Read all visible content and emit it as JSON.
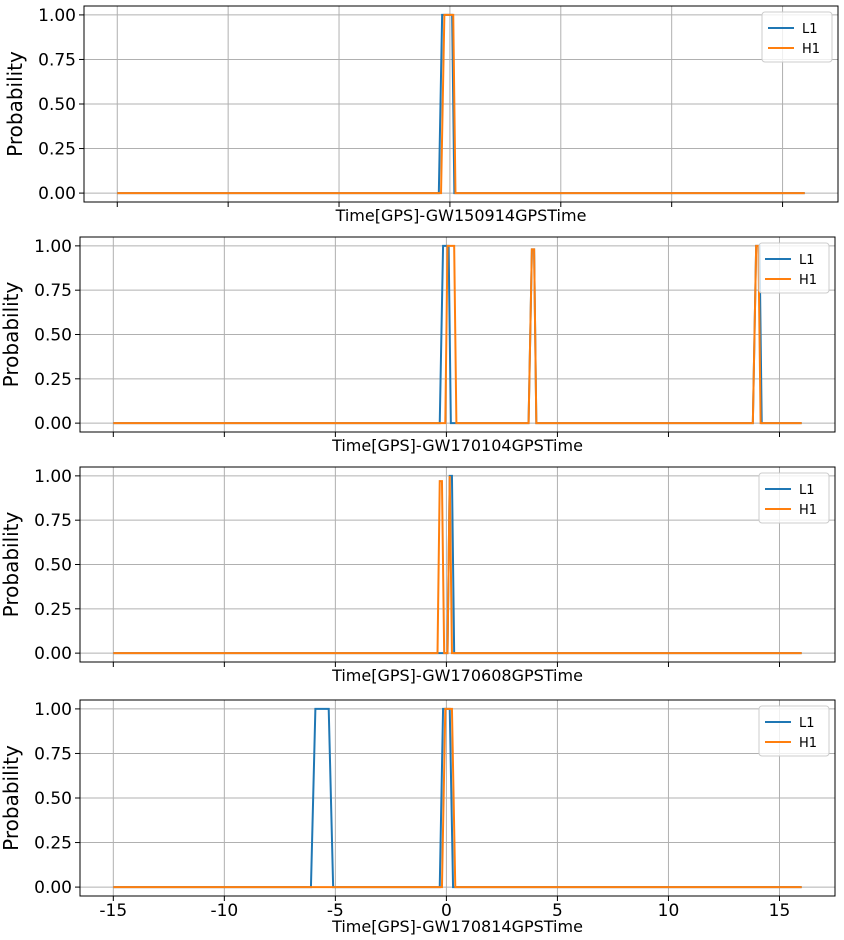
{
  "colors": {
    "L1": "#1f77b4",
    "H1": "#ff7f0e",
    "grid": "#b0b0b0",
    "axes": "#000000"
  },
  "chart_data": [
    {
      "type": "line",
      "xlabel": "Time[GPS]-GW150914GPSTime",
      "ylabel": "Probability",
      "xlim": [
        -16.5,
        17.5
      ],
      "ylim": [
        -0.05,
        1.05
      ],
      "xticks": [
        -15,
        -10,
        -5,
        0,
        5,
        10,
        15
      ],
      "xtick_labels": [
        "-15",
        "-10",
        "-5",
        "0",
        "5",
        "10",
        "15"
      ],
      "yticks": [
        0,
        0.25,
        0.5,
        0.75,
        1.0
      ],
      "ytick_labels": [
        "0.00",
        "0.25",
        "0.50",
        "0.75",
        "1.00"
      ],
      "show_xtick_labels": false,
      "grid": true,
      "legend": "top-right",
      "series": [
        {
          "name": "L1",
          "x": [
            -15,
            -0.5,
            -0.35,
            0.1,
            0.2,
            16
          ],
          "y": [
            0,
            0,
            1,
            1,
            0,
            0
          ]
        },
        {
          "name": "H1",
          "x": [
            -15,
            -0.4,
            -0.25,
            0.15,
            0.25,
            16
          ],
          "y": [
            0,
            0,
            1,
            1,
            0,
            0
          ]
        }
      ]
    },
    {
      "type": "line",
      "xlabel": "Time[GPS]-GW170104GPSTime",
      "ylabel": "Probability",
      "xlim": [
        -16.5,
        17.5
      ],
      "ylim": [
        -0.05,
        1.05
      ],
      "xticks": [
        -15,
        -10,
        -5,
        0,
        5,
        10,
        15
      ],
      "xtick_labels": [
        "-15",
        "-10",
        "-5",
        "0",
        "5",
        "10",
        "15"
      ],
      "yticks": [
        0,
        0.25,
        0.5,
        0.75,
        1.0
      ],
      "ytick_labels": [
        "0.00",
        "0.25",
        "0.50",
        "0.75",
        "1.00"
      ],
      "show_xtick_labels": false,
      "grid": true,
      "legend": "top-right",
      "series": [
        {
          "name": "L1",
          "x": [
            -15,
            -0.3,
            -0.15,
            0.1,
            0.2,
            3.7,
            3.85,
            3.95,
            4.05,
            13.8,
            13.95,
            14.1,
            14.2,
            16
          ],
          "y": [
            0,
            0,
            1,
            1,
            0,
            0,
            0.98,
            0.98,
            0,
            0,
            1,
            1,
            0,
            0
          ]
        },
        {
          "name": "H1",
          "x": [
            -15,
            -0.05,
            0.05,
            0.35,
            0.45,
            3.7,
            3.85,
            3.95,
            4.05,
            13.8,
            13.95,
            14.05,
            14.15,
            16
          ],
          "y": [
            0,
            0,
            1,
            1,
            0,
            0,
            0.98,
            0.98,
            0,
            0,
            1,
            1,
            0,
            0
          ]
        }
      ]
    },
    {
      "type": "line",
      "xlabel": "Time[GPS]-GW170608GPSTime",
      "ylabel": "Probability",
      "xlim": [
        -16.5,
        17.5
      ],
      "ylim": [
        -0.05,
        1.05
      ],
      "xticks": [
        -15,
        -10,
        -5,
        0,
        5,
        10,
        15
      ],
      "xtick_labels": [
        "-15",
        "-10",
        "-5",
        "0",
        "5",
        "10",
        "15"
      ],
      "yticks": [
        0,
        0.25,
        0.5,
        0.75,
        1.0
      ],
      "ytick_labels": [
        "0.00",
        "0.25",
        "0.50",
        "0.75",
        "1.00"
      ],
      "show_xtick_labels": false,
      "grid": true,
      "legend": "top-right",
      "series": [
        {
          "name": "L1",
          "x": [
            -15,
            0.05,
            0.15,
            0.25,
            0.35,
            16
          ],
          "y": [
            0,
            0,
            1,
            1,
            0,
            0
          ]
        },
        {
          "name": "H1",
          "x": [
            -15,
            -0.4,
            -0.3,
            -0.2,
            -0.1,
            0.05,
            0.15,
            0.25,
            16
          ],
          "y": [
            0,
            0,
            0.97,
            0.97,
            0,
            0,
            1,
            0,
            0
          ]
        }
      ]
    },
    {
      "type": "line",
      "xlabel": "Time[GPS]-GW170814GPSTime",
      "ylabel": "Probability",
      "xlim": [
        -16.5,
        17.5
      ],
      "ylim": [
        -0.05,
        1.05
      ],
      "xticks": [
        -15,
        -10,
        -5,
        0,
        5,
        10,
        15
      ],
      "xtick_labels": [
        "-15",
        "-10",
        "-5",
        "0",
        "5",
        "10",
        "15"
      ],
      "yticks": [
        0,
        0.25,
        0.5,
        0.75,
        1.0
      ],
      "ytick_labels": [
        "0.00",
        "0.25",
        "0.50",
        "0.75",
        "1.00"
      ],
      "show_xtick_labels": true,
      "grid": true,
      "legend": "top-right",
      "series": [
        {
          "name": "L1",
          "x": [
            -15,
            -6.1,
            -5.9,
            -5.3,
            -5.1,
            -0.3,
            -0.15,
            0.15,
            0.3,
            16
          ],
          "y": [
            0,
            0,
            1,
            1,
            0,
            0,
            1,
            1,
            0,
            0
          ]
        },
        {
          "name": "H1",
          "x": [
            -15,
            -0.2,
            -0.05,
            0.25,
            0.4,
            16
          ],
          "y": [
            0,
            0,
            1,
            1,
            0,
            0
          ]
        }
      ]
    }
  ]
}
